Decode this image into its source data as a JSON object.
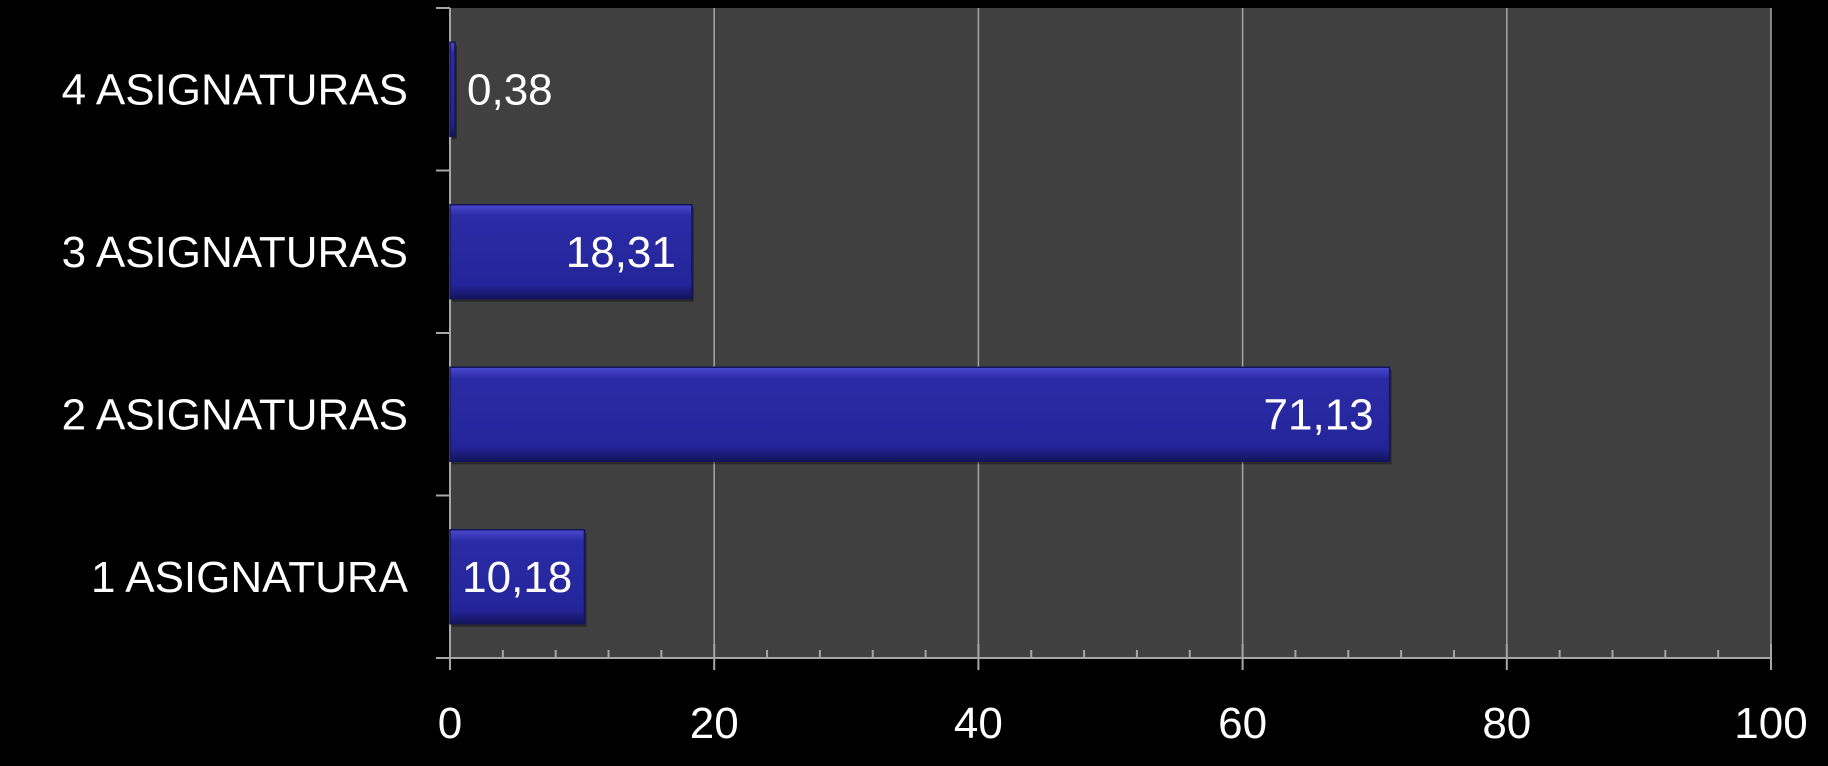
{
  "chart_data": {
    "type": "bar",
    "orientation": "horizontal",
    "categories": [
      "1 ASIGNATURA",
      "2 ASIGNATURAS",
      "3 ASIGNATURAS",
      "4 ASIGNATURAS"
    ],
    "values": [
      10.18,
      71.13,
      18.31,
      0.38
    ],
    "value_labels": [
      "10,18",
      "71,13",
      "18,31",
      "0,38"
    ],
    "xlim": [
      0,
      100
    ],
    "x_ticks": [
      0,
      20,
      40,
      60,
      80,
      100
    ],
    "x_tick_labels": [
      "0",
      "20",
      "40",
      "60",
      "80",
      "100"
    ],
    "minor_tick_step": 4,
    "grid": true,
    "legend": "none",
    "title": "",
    "xlabel": "",
    "ylabel": "",
    "colors": {
      "page_background": "#000000",
      "plot_background": "#404040",
      "gridline": "#a6a6a6",
      "bar_fill": "#2b2ba6",
      "bar_highlight": "#4a4ad0",
      "bar_shadow": "#14145c",
      "text": "#ffffff"
    }
  }
}
